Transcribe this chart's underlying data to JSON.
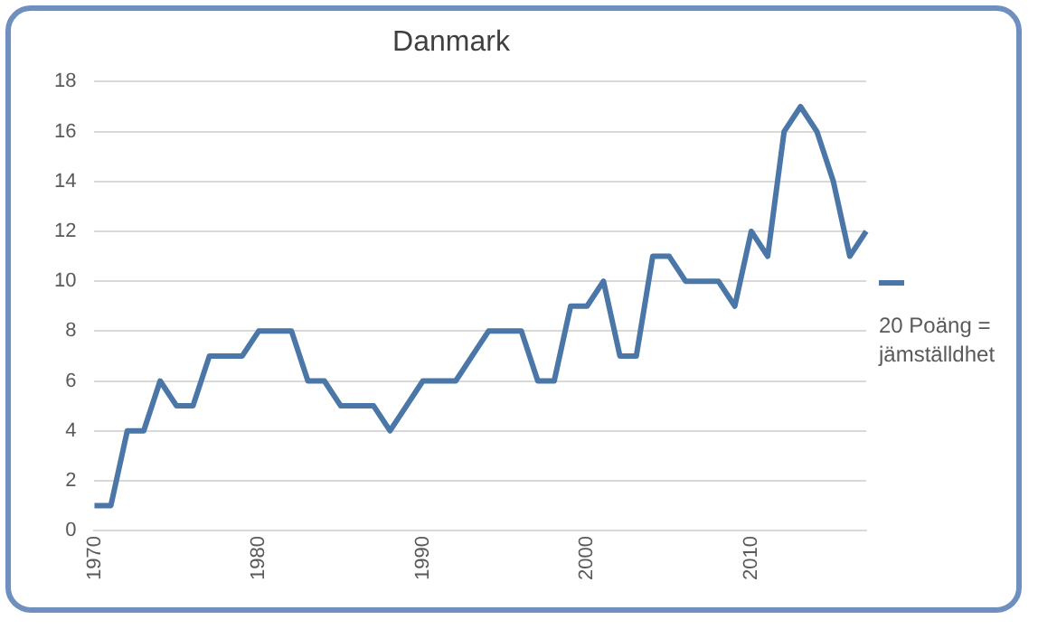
{
  "chart_data": {
    "type": "line",
    "title": "Danmark",
    "categories": [
      "1970",
      null,
      null,
      null,
      null,
      null,
      null,
      null,
      null,
      null,
      "1980",
      null,
      null,
      null,
      null,
      null,
      null,
      null,
      null,
      null,
      "1990",
      null,
      null,
      null,
      null,
      null,
      null,
      null,
      null,
      null,
      "2000",
      null,
      null,
      null,
      null,
      null,
      null,
      null,
      null,
      null,
      "2010",
      null,
      null,
      null,
      null,
      null,
      null,
      null
    ],
    "series": [
      {
        "name": "20 Poäng = jämställdhet",
        "color": "#4a76a8",
        "values": [
          1,
          1,
          4,
          4,
          6,
          5,
          5,
          7,
          7,
          7,
          8,
          8,
          8,
          6,
          6,
          5,
          5,
          5,
          4,
          5,
          6,
          6,
          6,
          7,
          8,
          8,
          8,
          6,
          6,
          9,
          9,
          10,
          7,
          7,
          11,
          11,
          10,
          10,
          10,
          9,
          12,
          11,
          16,
          17,
          16,
          14,
          11,
          12
        ]
      }
    ],
    "ylim": [
      0,
      18
    ],
    "yticks": [
      0,
      2,
      4,
      6,
      8,
      10,
      12,
      14,
      16,
      18
    ],
    "grid": "y",
    "legend": "right",
    "marker": "none",
    "line_style": "solid"
  }
}
